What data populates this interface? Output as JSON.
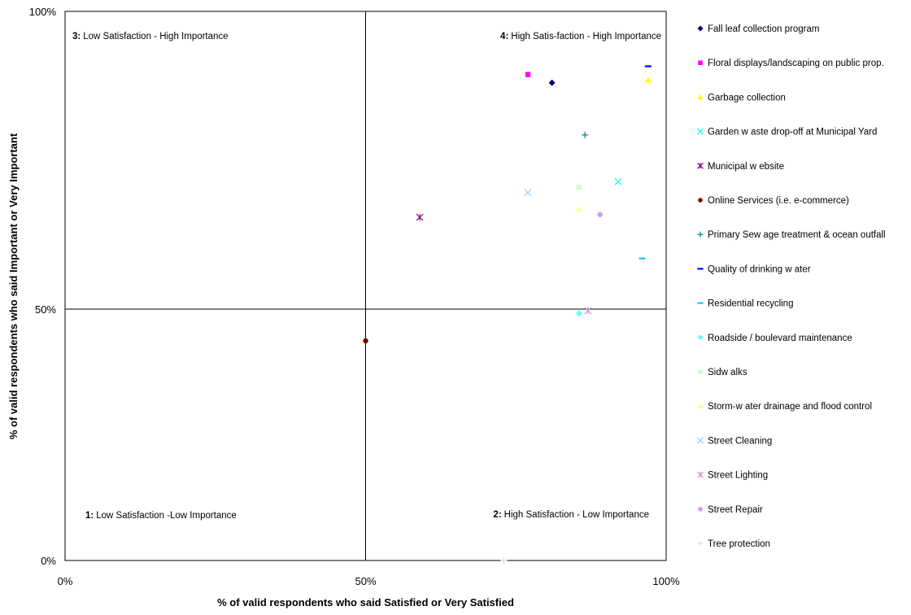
{
  "chart_data": {
    "type": "scatter",
    "xlabel": "% of valid respondents who said Satisfied or Very Satisfied",
    "ylabel": "% of valid respondents who said Important or Very Important",
    "xlim": [
      0,
      100
    ],
    "ylim": [
      0,
      100
    ],
    "x_ticks": [
      "0%",
      "50%",
      "100%"
    ],
    "y_ticks": [
      "0%",
      "50%",
      "100%"
    ],
    "grid": false,
    "reference_lines": {
      "x": 50,
      "y": 50
    },
    "legend_position": "right",
    "quadrant_labels": [
      {
        "number": "1:",
        "text": "Low Satisfaction -Low Importance"
      },
      {
        "number": "2:",
        "text": "High Satisfaction - Low Importance"
      },
      {
        "number": "3:",
        "text": "Low Satisfaction - High Importance"
      },
      {
        "number": "4:",
        "text": "High Satis-faction - High Importance"
      }
    ],
    "series": [
      {
        "name": "Fall leaf collection program",
        "marker": "diamond",
        "color": "#000080",
        "x": 81,
        "y": 87
      },
      {
        "name": "Floral displays/landscaping on public prop.",
        "marker": "square",
        "color": "#ff00ff",
        "x": 77,
        "y": 88.5
      },
      {
        "name": "Garbage collection",
        "marker": "triangle",
        "color": "#ffff00",
        "x": 97,
        "y": 87.5
      },
      {
        "name": "Garden w aste drop-off at Municipal Yard",
        "marker": "x",
        "color": "#00ffff",
        "x": 92,
        "y": 69
      },
      {
        "name": "Municipal w ebsite",
        "marker": "star",
        "color": "#800080",
        "x": 59,
        "y": 62.5
      },
      {
        "name": "Online Services (i.e. e-commerce)",
        "marker": "circle",
        "color": "#800000",
        "x": 50,
        "y": 40
      },
      {
        "name": "Primary Sew age treatment & ocean outfall",
        "marker": "plus",
        "color": "#008080",
        "x": 86.5,
        "y": 77.5
      },
      {
        "name": "Quality of drinking w ater",
        "marker": "dash",
        "color": "#0000ff",
        "x": 97,
        "y": 90
      },
      {
        "name": "Residential recycling",
        "marker": "dash",
        "color": "#00ccff",
        "x": 96,
        "y": 55
      },
      {
        "name": "Roadside / boulevard maintenance",
        "marker": "diamond",
        "color": "#66ffff",
        "x": 85.5,
        "y": 45
      },
      {
        "name": "Sidw alks",
        "marker": "square",
        "color": "#ccffcc",
        "x": 85.5,
        "y": 68
      },
      {
        "name": "Storm-w ater drainage and flood control",
        "marker": "triangle",
        "color": "#ffff99",
        "x": 85.5,
        "y": 64
      },
      {
        "name": "Street Cleaning",
        "marker": "x",
        "color": "#99ccff",
        "x": 77,
        "y": 67
      },
      {
        "name": "Street Lighting",
        "marker": "star",
        "color": "#cc99cc",
        "x": 87,
        "y": 45.5
      },
      {
        "name": "Street Repair",
        "marker": "circle",
        "color": "#cc99ff",
        "x": 89,
        "y": 63
      },
      {
        "name": "Tree protection",
        "marker": "plus",
        "color": "#dddddd",
        "x": 73,
        "y": 0
      }
    ]
  }
}
